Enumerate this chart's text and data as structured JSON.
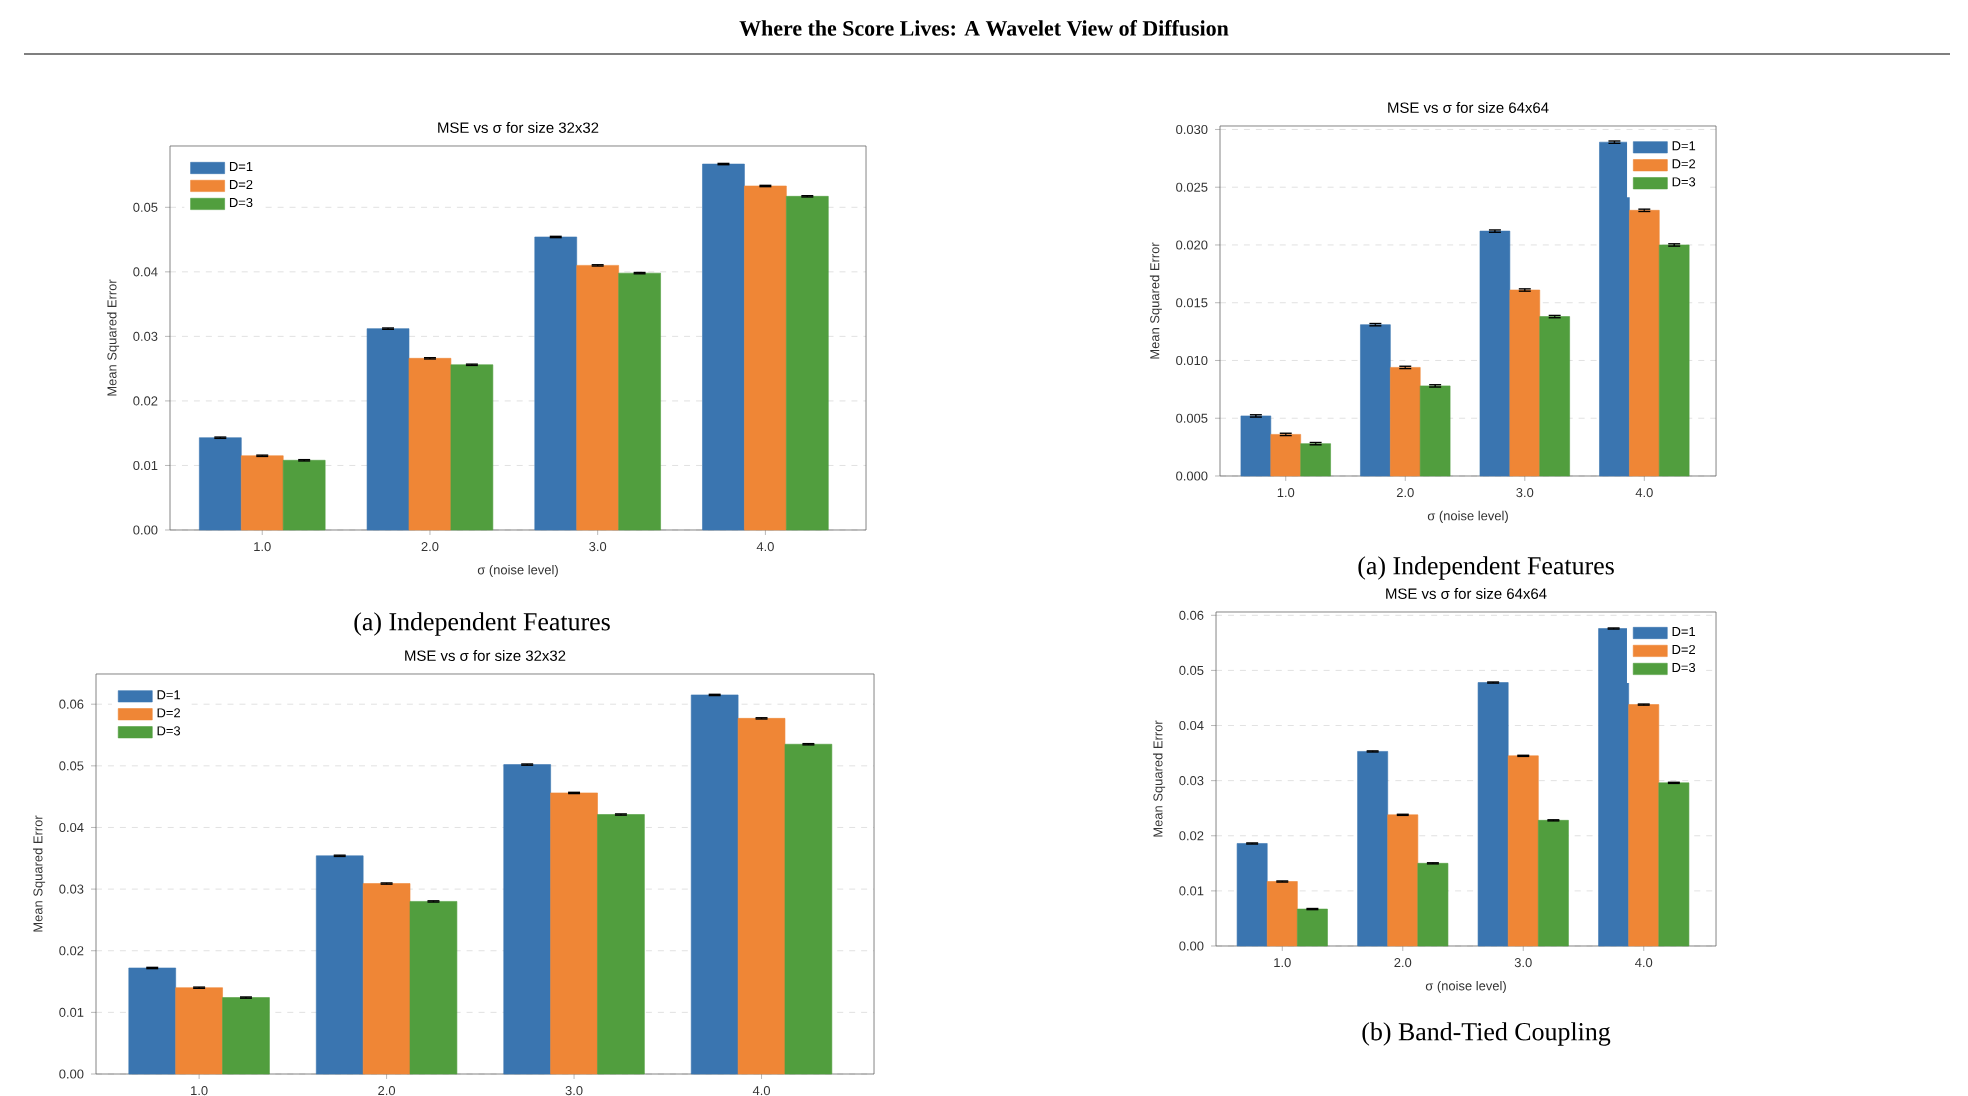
{
  "chart_data": [
    {
      "type": "other",
      "title": "Where the Score Lives: A Wavelet View of Diffusion"
    },
    {
      "type": "bar",
      "title": "MSE vs σ for size 32x32",
      "xlabel": "σ (noise level)",
      "ylabel": "Mean Squared Error",
      "categories": [
        "1.0",
        "2.0",
        "3.0",
        "4.0"
      ],
      "series": [
        {
          "name": "D=1",
          "color": "#3a75b0",
          "values": [
            0.0143,
            0.0312,
            0.0454,
            0.0567
          ],
          "errors": [
            0.0001,
            0.0001,
            0.0001,
            0.0001
          ]
        },
        {
          "name": "D=2",
          "color": "#ef8636",
          "values": [
            0.0115,
            0.0266,
            0.041,
            0.0533
          ],
          "errors": [
            0.0001,
            0.0001,
            0.0001,
            0.0001
          ]
        },
        {
          "name": "D=3",
          "color": "#519e3e",
          "values": [
            0.0108,
            0.0256,
            0.0398,
            0.0517
          ],
          "errors": [
            0.0001,
            0.0001,
            0.0001,
            0.0001
          ]
        }
      ],
      "ylim": [
        0,
        0.0595
      ],
      "yticks": [
        {
          "value": 0,
          "label": "0.00"
        },
        0.01,
        0.02,
        0.03,
        0.04,
        0.05
      ],
      "grid": "y",
      "legend": "top left",
      "annotations": [
        "(a) Independent Features"
      ]
    },
    {
      "type": "bar",
      "title": "MSE vs σ for size 64x64",
      "xlabel": "σ (noise level)",
      "ylabel": "Mean Squared Error",
      "categories": [
        "1.0",
        "2.0",
        "3.0",
        "4.0"
      ],
      "series": [
        {
          "name": "D=1",
          "color": "#3a75b0",
          "values": [
            0.0052,
            0.0131,
            0.0212,
            0.0289
          ],
          "errors": [
            0.0001,
            0.0001,
            0.0001,
            0.0001
          ]
        },
        {
          "name": "D=2",
          "color": "#ef8636",
          "values": [
            0.0036,
            0.0094,
            0.0161,
            0.023
          ],
          "errors": [
            0.0001,
            0.0001,
            0.0001,
            0.0001
          ]
        },
        {
          "name": "D=3",
          "color": "#519e3e",
          "values": [
            0.0028,
            0.0078,
            0.0138,
            0.02
          ],
          "errors": [
            0.0001,
            0.0001,
            0.0001,
            0.0001
          ]
        }
      ],
      "ylim": [
        0,
        0.0303
      ],
      "yticks": [
        {
          "value": 0,
          "label": "0.000"
        },
        0.005,
        {
          "value": 0.01,
          "label": "0.010"
        },
        0.015,
        {
          "value": 0.02,
          "label": "0.020"
        },
        0.025,
        {
          "value": 0.03,
          "label": "0.030"
        }
      ],
      "grid": "y",
      "legend": "top right",
      "annotations": [
        "(a) Independent Features"
      ]
    },
    {
      "type": "bar",
      "title": "MSE vs σ for size 32x32",
      "ylabel": "Mean Squared Error",
      "categories": [
        "1.0",
        "2.0",
        "3.0",
        "4.0"
      ],
      "series": [
        {
          "name": "D=1",
          "color": "#3a75b0",
          "values": [
            0.0172,
            0.0354,
            0.0502,
            0.0615
          ],
          "errors": [
            0.0001,
            0.0001,
            0.0001,
            0.0001
          ]
        },
        {
          "name": "D=2",
          "color": "#ef8636",
          "values": [
            0.014,
            0.0309,
            0.0456,
            0.0577
          ],
          "errors": [
            0.0001,
            0.0001,
            0.0001,
            0.0001
          ]
        },
        {
          "name": "D=3",
          "color": "#519e3e",
          "values": [
            0.0124,
            0.028,
            0.0421,
            0.0535
          ],
          "errors": [
            0.0001,
            0.0001,
            0.0001,
            0.0001
          ]
        }
      ],
      "ylim": [
        0,
        0.0649
      ],
      "yticks": [
        {
          "value": 0,
          "label": "0.00"
        },
        0.01,
        0.02,
        0.03,
        0.04,
        0.05,
        0.06
      ],
      "grid": "y",
      "legend": "top left"
    },
    {
      "type": "bar",
      "title": "MSE vs σ for size 64x64",
      "xlabel": "σ (noise level)",
      "ylabel": "Mean Squared Error",
      "categories": [
        "1.0",
        "2.0",
        "3.0",
        "4.0"
      ],
      "series": [
        {
          "name": "D=1",
          "color": "#3a75b0",
          "values": [
            0.0186,
            0.0353,
            0.0478,
            0.0576
          ],
          "errors": [
            0.0001,
            0.0001,
            0.0001,
            0.0001
          ]
        },
        {
          "name": "D=2",
          "color": "#ef8636",
          "values": [
            0.0117,
            0.0238,
            0.0345,
            0.0438
          ],
          "errors": [
            0.0001,
            0.0001,
            0.0001,
            0.0001
          ]
        },
        {
          "name": "D=3",
          "color": "#519e3e",
          "values": [
            0.0067,
            0.015,
            0.0228,
            0.0296
          ],
          "errors": [
            0.0001,
            0.0001,
            0.0001,
            0.0001
          ]
        }
      ],
      "ylim": [
        0,
        0.0606
      ],
      "yticks": [
        {
          "value": 0,
          "label": "0.00"
        },
        0.01,
        0.02,
        0.03,
        0.04,
        0.05,
        0.06
      ],
      "grid": "y",
      "legend": "top right",
      "annotations": [
        "(b) Band-Tied Coupling"
      ]
    }
  ]
}
